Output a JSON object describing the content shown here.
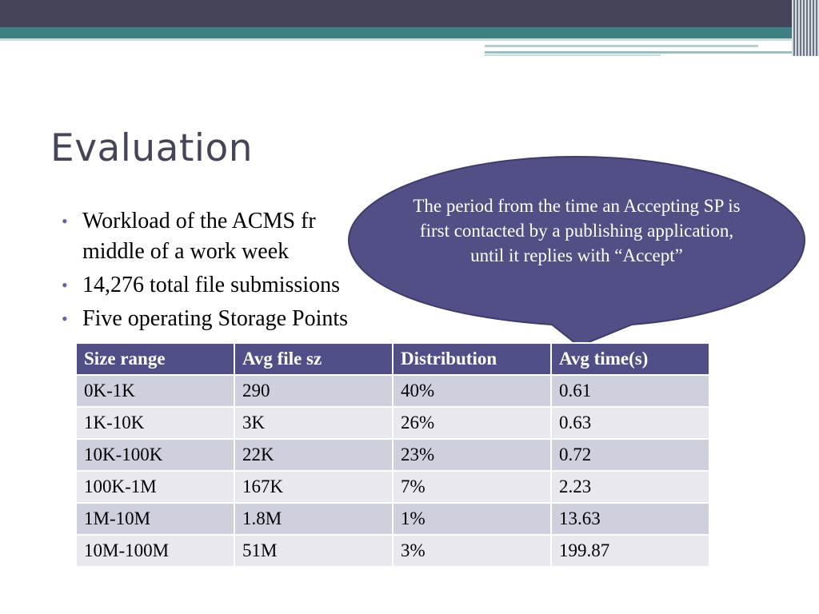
{
  "slide": {
    "title": "Evaluation",
    "bullets": [
      "Workload of the ACMS fr",
      "middle of a work week",
      "14,276 total file submissions",
      "Five operating Storage Points"
    ]
  },
  "callout": {
    "text": "The period from the time an Accepting SP is first contacted by a publishing application, until it replies with “Accept”"
  },
  "table": {
    "headers": [
      "Size range",
      "Avg file sz",
      "Distribution",
      "Avg time(s)"
    ],
    "rows": [
      [
        "0K-1K",
        "290",
        "40%",
        "0.61"
      ],
      [
        "1K-10K",
        "3K",
        "26%",
        "0.63"
      ],
      [
        "10K-100K",
        "22K",
        "23%",
        "0.72"
      ],
      [
        "100K-1M",
        "167K",
        "7%",
        "2.23"
      ],
      [
        "1M-10M",
        "1.8M",
        "1%",
        "13.63"
      ],
      [
        "10M-100M",
        "51M",
        "3%",
        "199.87"
      ]
    ]
  },
  "colors": {
    "header_dark": "#454559",
    "header_teal": "#3d7f83",
    "callout_fill": "#524f86",
    "table_header": "#4f4e87",
    "bullet_dot": "#6b5fa8"
  }
}
